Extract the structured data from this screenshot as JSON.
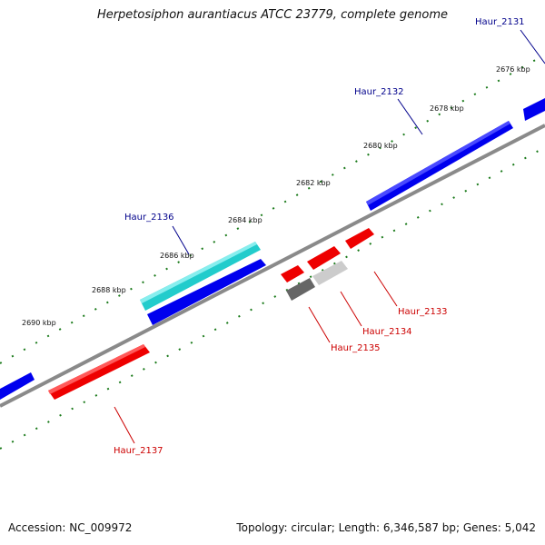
{
  "title": "Herpetosiphon aurantiacus ATCC 23779, complete genome",
  "footer": {
    "accession": "Accession: NC_009972",
    "summary": "Topology: circular; Length: 6,346,587 bp; Genes: 5,042"
  },
  "colors": {
    "backbone": "#888888",
    "ticks": "#1a7a1a",
    "forward_gene": "#0000ee",
    "reverse_gene": "#ee0000",
    "highlight_gene": "#22cccc",
    "gray_gene": "#666666",
    "lightgray_gene": "#cccccc",
    "forward_label": "#00008b",
    "reverse_label": "#cc0000"
  },
  "kbp_labels": [
    "2676 kbp",
    "2678 kbp",
    "2680 kbp",
    "2682 kbp",
    "2684 kbp",
    "2686 kbp",
    "2688 kbp",
    "2690 kbp"
  ],
  "gene_labels": {
    "haur_2131": "Haur_2131",
    "haur_2132": "Haur_2132",
    "haur_2133": "Haur_2133",
    "haur_2134": "Haur_2134",
    "haur_2135": "Haur_2135",
    "haur_2136": "Haur_2136",
    "haur_2137": "Haur_2137"
  }
}
